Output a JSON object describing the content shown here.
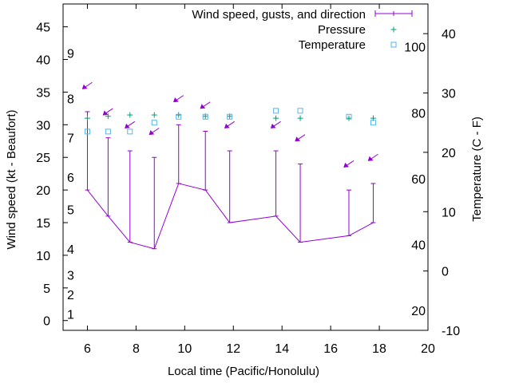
{
  "chart_data": {
    "type": "line",
    "xlabel": "Local time (Pacific/Honolulu)",
    "ylabel": "Wind speed (kt - Beaufort)",
    "y2label": "Temperature (C - F)",
    "xlim": [
      5,
      20
    ],
    "ylim": [
      -1.5,
      48.5
    ],
    "y2lim": [
      -10,
      45
    ],
    "x_ticks": [
      6,
      8,
      10,
      12,
      14,
      16,
      18,
      20
    ],
    "y_ticks": [
      0,
      5,
      10,
      15,
      20,
      25,
      30,
      35,
      40,
      45
    ],
    "y2_ticks": [
      -10,
      0,
      10,
      20,
      30,
      40
    ],
    "beaufort_labels": [
      {
        "label": "1",
        "kt": 1
      },
      {
        "label": "2",
        "kt": 4
      },
      {
        "label": "3",
        "kt": 7
      },
      {
        "label": "4",
        "kt": 11
      },
      {
        "label": "5",
        "kt": 17
      },
      {
        "label": "6",
        "kt": 22
      },
      {
        "label": "7",
        "kt": 28
      },
      {
        "label": "8",
        "kt": 34
      },
      {
        "label": "9",
        "kt": 41
      }
    ],
    "fahrenheit_labels": [
      {
        "label": "20",
        "c": -6.67
      },
      {
        "label": "40",
        "c": 4.44
      },
      {
        "label": "60",
        "c": 15.56
      },
      {
        "label": "80",
        "c": 26.67
      },
      {
        "label": "100",
        "c": 37.78
      }
    ],
    "colors": {
      "wind": "#9400D3",
      "pressure": "#009E73",
      "temperature": "#56B4E9",
      "arrows": "#9400D3"
    },
    "series": [
      {
        "name": "Wind speed, gusts, and direction",
        "x": [
          6.0,
          6.85,
          7.75,
          8.75,
          9.75,
          10.85,
          11.85,
          13.75,
          14.75,
          16.75,
          17.75
        ],
        "speed": [
          20,
          16,
          12,
          11,
          21,
          20,
          15,
          16,
          12,
          13,
          15
        ],
        "gust": [
          32,
          28,
          26,
          25,
          30,
          29,
          26,
          26,
          24,
          20,
          21
        ],
        "direction_kt_level": [
          36,
          32,
          30,
          29,
          34,
          33,
          30,
          30,
          28,
          24,
          25
        ]
      },
      {
        "name": "Pressure",
        "x": [
          6.0,
          6.85,
          7.75,
          8.75,
          9.75,
          10.85,
          11.85,
          13.75,
          14.75,
          16.75,
          17.75
        ],
        "y": [
          31,
          31.3,
          31.5,
          31.5,
          31.5,
          31.3,
          31.3,
          31,
          31,
          31,
          31
        ]
      },
      {
        "name": "Temperature",
        "x": [
          6.0,
          6.85,
          7.75,
          8.75,
          9.75,
          10.85,
          11.85,
          13.75,
          14.75,
          16.75,
          17.75
        ],
        "c": [
          23.5,
          23.5,
          23.5,
          25,
          26,
          26,
          26,
          27,
          27,
          26,
          25
        ]
      }
    ]
  }
}
